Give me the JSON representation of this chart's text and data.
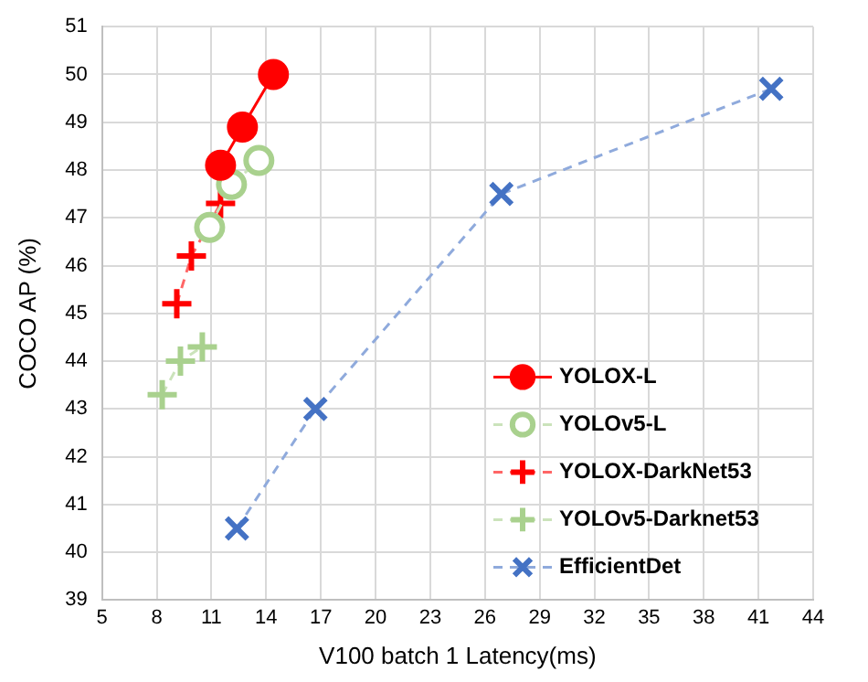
{
  "chart_data": {
    "type": "line",
    "xlabel": "V100 batch 1 Latency(ms)",
    "ylabel": "COCO AP (%)",
    "xlim": [
      5,
      44
    ],
    "xticks": [
      5,
      8,
      11,
      14,
      17,
      20,
      23,
      26,
      29,
      32,
      35,
      38,
      41,
      44
    ],
    "ylim": [
      39,
      51
    ],
    "yticks": [
      39,
      40,
      41,
      42,
      43,
      44,
      45,
      46,
      47,
      48,
      49,
      50,
      51
    ],
    "grid": true,
    "legend": "bottom right",
    "series": [
      {
        "name": "YOLOX-L",
        "color": "#ff0000",
        "marker": "circle",
        "line_style": "solid",
        "x": [
          11.5,
          12.7,
          14.4
        ],
        "values": [
          48.1,
          48.9,
          50.0
        ]
      },
      {
        "name": "YOLOv5-L",
        "color": "#a9d18e",
        "marker": "circle-open",
        "line_style": "dashed",
        "x": [
          10.9,
          12.1,
          13.6
        ],
        "values": [
          46.8,
          47.7,
          48.2
        ]
      },
      {
        "name": "YOLOX-DarkNet53",
        "color": "#ff0000",
        "marker": "cross",
        "line_style": "dashed",
        "x": [
          9.1,
          9.9,
          11.5
        ],
        "values": [
          45.2,
          46.2,
          47.3
        ]
      },
      {
        "name": "YOLOv5-Darknet53",
        "color": "#a9d18e",
        "marker": "cross",
        "line_style": "dashed",
        "x": [
          8.3,
          9.3,
          10.5
        ],
        "values": [
          43.3,
          44.0,
          44.3
        ]
      },
      {
        "name": "EfficientDet",
        "color": "#4472c4",
        "marker": "x",
        "line_style": "dashed",
        "x": [
          12.4,
          16.7,
          26.9,
          41.7
        ],
        "values": [
          40.5,
          43.0,
          47.5,
          49.7
        ]
      }
    ]
  }
}
